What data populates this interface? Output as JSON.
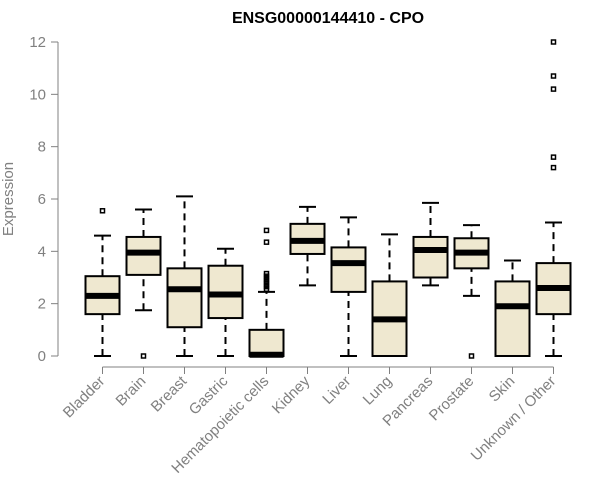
{
  "chart_data": {
    "type": "box",
    "title": "ENSG00000144410 - CPO",
    "xlabel": "",
    "ylabel": "Expression",
    "ylim": [
      0,
      12
    ],
    "yticks": [
      "0",
      "2",
      "4",
      "6",
      "8",
      "10",
      "12"
    ],
    "grid": false,
    "colors": {
      "box_fill": "#efe8d0",
      "stroke": "#000000",
      "axis": "#808080"
    },
    "categories": [
      "Bladder",
      "Brain",
      "Breast",
      "Gastric",
      "Hematopoietic cells",
      "Kidney",
      "Liver",
      "Lung",
      "Pancreas",
      "Prostate",
      "Skin",
      "Unknown / Other"
    ],
    "boxes": [
      {
        "whisker_low": 0.0,
        "q1": 1.6,
        "median": 2.3,
        "q3": 3.05,
        "whisker_high": 4.6,
        "outliers": [
          5.55
        ]
      },
      {
        "whisker_low": 1.75,
        "q1": 3.1,
        "median": 3.95,
        "q3": 4.55,
        "whisker_high": 5.6,
        "outliers": [
          0.0
        ]
      },
      {
        "whisker_low": 0.0,
        "q1": 1.1,
        "median": 2.55,
        "q3": 3.35,
        "whisker_high": 6.1,
        "outliers": []
      },
      {
        "whisker_low": 0.0,
        "q1": 1.45,
        "median": 2.35,
        "q3": 3.45,
        "whisker_high": 4.1,
        "outliers": []
      },
      {
        "whisker_low": 0.0,
        "q1": 0.0,
        "median": 0.05,
        "q3": 1.0,
        "whisker_high": 2.45,
        "outliers": [
          2.55,
          2.65,
          2.75,
          2.85,
          2.95,
          3.05,
          3.15,
          4.35,
          4.8
        ]
      },
      {
        "whisker_low": 2.7,
        "q1": 3.9,
        "median": 4.4,
        "q3": 5.05,
        "whisker_high": 5.7,
        "outliers": []
      },
      {
        "whisker_low": 0.0,
        "q1": 2.45,
        "median": 3.55,
        "q3": 4.15,
        "whisker_high": 5.3,
        "outliers": []
      },
      {
        "whisker_low": 0.0,
        "q1": 0.0,
        "median": 1.4,
        "q3": 2.85,
        "whisker_high": 4.65,
        "outliers": []
      },
      {
        "whisker_low": 2.7,
        "q1": 3.0,
        "median": 4.05,
        "q3": 4.55,
        "whisker_high": 5.85,
        "outliers": []
      },
      {
        "whisker_low": 2.3,
        "q1": 3.35,
        "median": 3.95,
        "q3": 4.5,
        "whisker_high": 5.0,
        "outliers": [
          0.0
        ]
      },
      {
        "whisker_low": 0.0,
        "q1": 0.0,
        "median": 1.9,
        "q3": 2.85,
        "whisker_high": 3.65,
        "outliers": []
      },
      {
        "whisker_low": 0.0,
        "q1": 1.6,
        "median": 2.6,
        "q3": 3.55,
        "whisker_high": 5.1,
        "outliers": [
          7.2,
          7.6,
          10.2,
          10.7,
          12.0
        ]
      }
    ]
  }
}
